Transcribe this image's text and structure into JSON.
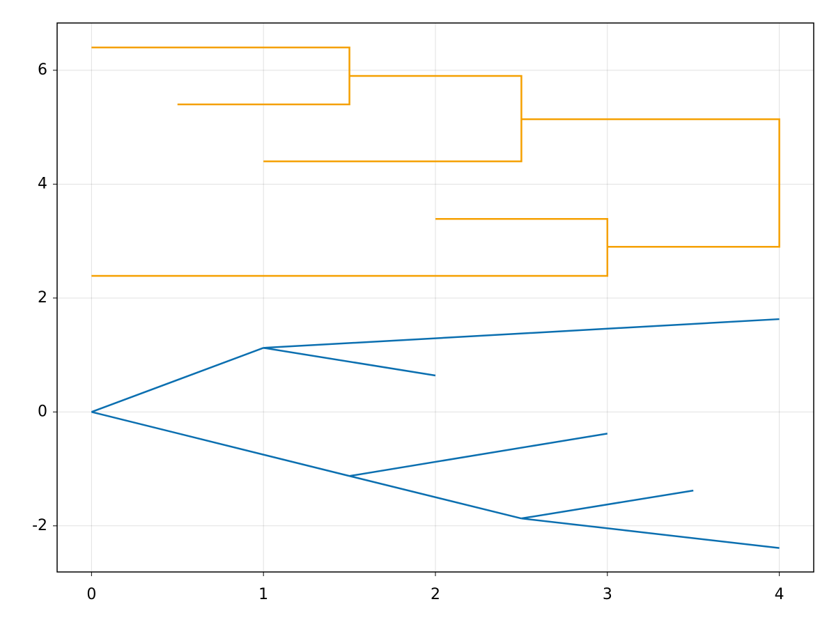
{
  "chart_data": {
    "type": "line",
    "xlim": [
      -0.2,
      4.2
    ],
    "ylim": [
      -2.81,
      6.83
    ],
    "xticks": [
      0,
      1,
      2,
      3,
      4
    ],
    "yticks": [
      -2,
      0,
      2,
      4,
      6
    ],
    "grid": true,
    "series": [
      {
        "color": "#f5a000",
        "segments": [
          {
            "x": [
              0,
              1.5,
              1.5,
              0.5
            ],
            "y": [
              6.4,
              6.4,
              5.4,
              5.4
            ]
          },
          {
            "x": [
              1.5,
              2.5,
              2.5,
              1
            ],
            "y": [
              5.9,
              5.9,
              4.4,
              4.4
            ]
          },
          {
            "x": [
              2.5,
              4,
              4,
              3
            ],
            "y": [
              5.14,
              5.14,
              2.9,
              2.9
            ]
          },
          {
            "x": [
              2,
              3,
              3,
              0
            ],
            "y": [
              3.39,
              3.39,
              2.39,
              2.39
            ]
          }
        ]
      },
      {
        "color": "#0b6fb0",
        "segments": [
          {
            "x": [
              0,
              1
            ],
            "y": [
              0,
              1.125
            ]
          },
          {
            "x": [
              1,
              4
            ],
            "y": [
              1.125,
              1.63
            ]
          },
          {
            "x": [
              1,
              2
            ],
            "y": [
              1.125,
              0.64
            ]
          },
          {
            "x": [
              0,
              1.5
            ],
            "y": [
              0,
              -1.125
            ]
          },
          {
            "x": [
              1.5,
              3
            ],
            "y": [
              -1.125,
              -0.38
            ]
          },
          {
            "x": [
              1.5,
              2.5
            ],
            "y": [
              -1.125,
              -1.87
            ]
          },
          {
            "x": [
              2.5,
              3.5
            ],
            "y": [
              -1.87,
              -1.38
            ]
          },
          {
            "x": [
              2.5,
              4
            ],
            "y": [
              -1.87,
              -2.39
            ]
          }
        ]
      }
    ]
  }
}
